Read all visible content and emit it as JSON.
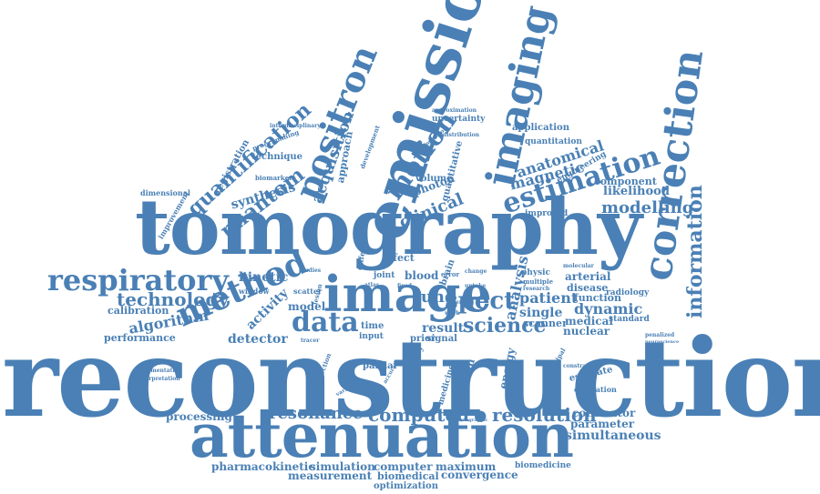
{
  "theme": {
    "word_color": "#4a80b5",
    "background": "#ffffff"
  },
  "words": [
    {
      "id": "reconstruction",
      "text": "reconstruction"
    },
    {
      "id": "tomography",
      "text": "tomography"
    },
    {
      "id": "attenuation",
      "text": "attenuation"
    },
    {
      "id": "emission",
      "text": "emission"
    },
    {
      "id": "image",
      "text": "image"
    },
    {
      "id": "imaging",
      "text": "imaging"
    },
    {
      "id": "correction",
      "text": "correction"
    },
    {
      "id": "positron",
      "text": "positron"
    },
    {
      "id": "method",
      "text": "method"
    },
    {
      "id": "respiratory",
      "text": "respiratory"
    },
    {
      "id": "estimation",
      "text": "estimation"
    },
    {
      "id": "motion",
      "text": "motion"
    },
    {
      "id": "data",
      "text": "data"
    },
    {
      "id": "spect",
      "text": "spect"
    },
    {
      "id": "science",
      "text": "science"
    },
    {
      "id": "quantification",
      "text": "quantification"
    },
    {
      "id": "phantom",
      "text": "phantom"
    },
    {
      "id": "information",
      "text": "information"
    },
    {
      "id": "technology",
      "text": "technology"
    },
    {
      "id": "resolution",
      "text": "resolution"
    },
    {
      "id": "computed",
      "text": "computed"
    },
    {
      "id": "resonance",
      "text": "resonance"
    },
    {
      "id": "simultaneous",
      "text": "simultaneous"
    },
    {
      "id": "modelling",
      "text": "modelling"
    },
    {
      "id": "anatomical",
      "text": "anatomical"
    },
    {
      "id": "magnetic",
      "text": "magnetic"
    },
    {
      "id": "clinical",
      "text": "clinical"
    },
    {
      "id": "acquisition",
      "text": "acquisition"
    },
    {
      "id": "patient",
      "text": "patient"
    },
    {
      "id": "dynamic",
      "text": "dynamic"
    },
    {
      "id": "analysis",
      "text": "analysis"
    },
    {
      "id": "algorithm",
      "text": "algorithm"
    },
    {
      "id": "detector",
      "text": "detector"
    },
    {
      "id": "activity",
      "text": "activity"
    },
    {
      "id": "kinetic",
      "text": "kinetic"
    },
    {
      "id": "model",
      "text": "model"
    },
    {
      "id": "likelihood",
      "text": "likelihood"
    },
    {
      "id": "component",
      "text": "component"
    },
    {
      "id": "synthesis",
      "text": "synthesis"
    },
    {
      "id": "lung",
      "text": "lung"
    },
    {
      "id": "single",
      "text": "single"
    },
    {
      "id": "result",
      "text": "result"
    },
    {
      "id": "nuclear",
      "text": "nuclear"
    },
    {
      "id": "medical",
      "text": "medical"
    },
    {
      "id": "function",
      "text": "function"
    },
    {
      "id": "disease",
      "text": "disease"
    },
    {
      "id": "arterial",
      "text": "arterial"
    },
    {
      "id": "collimator",
      "text": "collimator"
    },
    {
      "id": "parameter",
      "text": "parameter"
    },
    {
      "id": "measurement",
      "text": "measurement"
    },
    {
      "id": "simulation",
      "text": "simulation"
    },
    {
      "id": "pharmacokinetic",
      "text": "pharmacokinetic"
    },
    {
      "id": "computer",
      "text": "computer"
    },
    {
      "id": "maximum",
      "text": "maximum"
    },
    {
      "id": "convergence",
      "text": "convergence"
    },
    {
      "id": "biomedical",
      "text": "biomedical"
    },
    {
      "id": "optimization",
      "text": "optimization"
    },
    {
      "id": "biomedicine",
      "text": "biomedicine"
    },
    {
      "id": "processing",
      "text": "processing"
    },
    {
      "id": "calibration",
      "text": "calibration"
    },
    {
      "id": "performance",
      "text": "performance"
    },
    {
      "id": "photon",
      "text": "photon"
    },
    {
      "id": "volume",
      "text": "volume"
    },
    {
      "id": "technique",
      "text": "technique"
    },
    {
      "id": "registration",
      "text": "registration"
    },
    {
      "id": "approach",
      "text": "approach"
    },
    {
      "id": "application",
      "text": "application"
    },
    {
      "id": "uncertainty",
      "text": "uncertainty"
    },
    {
      "id": "energy",
      "text": "energy"
    },
    {
      "id": "system",
      "text": "system"
    },
    {
      "id": "density",
      "text": "density"
    },
    {
      "id": "partial",
      "text": "partial"
    },
    {
      "id": "scanner",
      "text": "scanner"
    },
    {
      "id": "estimate",
      "text": "estimate"
    },
    {
      "id": "evaluation",
      "text": "evaluation"
    },
    {
      "id": "standard",
      "text": "standard"
    },
    {
      "id": "radiology",
      "text": "radiology"
    },
    {
      "id": "improved",
      "text": "improved"
    },
    {
      "id": "quantitation",
      "text": "quantitation"
    },
    {
      "id": "engineering",
      "text": "engineering"
    },
    {
      "id": "quantitative",
      "text": "quantitative"
    },
    {
      "id": "brain",
      "text": "brain"
    },
    {
      "id": "blood",
      "text": "blood"
    },
    {
      "id": "effect",
      "text": "effect"
    },
    {
      "id": "joint",
      "text": "joint"
    },
    {
      "id": "time",
      "text": "time"
    },
    {
      "id": "input",
      "text": "input"
    },
    {
      "id": "prior",
      "text": "prior"
    },
    {
      "id": "signal",
      "text": "signal"
    },
    {
      "id": "physic",
      "text": "physic"
    },
    {
      "id": "medicine",
      "text": "medicine"
    },
    {
      "id": "dimensional",
      "text": "dimensional"
    },
    {
      "id": "improvement",
      "text": "improvement"
    },
    {
      "id": "biomarkers",
      "text": "biomarkers"
    },
    {
      "id": "programming",
      "text": "programming"
    },
    {
      "id": "interdisciplinary",
      "text": "interdisciplinary"
    },
    {
      "id": "development",
      "text": "development"
    },
    {
      "id": "optimisation",
      "text": "optimisation"
    },
    {
      "id": "distribution",
      "text": "distribution"
    },
    {
      "id": "approximation",
      "text": "approximation"
    },
    {
      "id": "different",
      "text": "different"
    },
    {
      "id": "scatter",
      "text": "scatter"
    },
    {
      "id": "window",
      "text": "window"
    },
    {
      "id": "studies",
      "text": "studies"
    },
    {
      "id": "lesion",
      "text": "lesion"
    },
    {
      "id": "projection",
      "text": "projection"
    },
    {
      "id": "segmentation",
      "text": "segmentation"
    },
    {
      "id": "interpretation",
      "text": "interpretation"
    },
    {
      "id": "penalized",
      "text": "penalized"
    },
    {
      "id": "neuroscience",
      "text": "neuroscience"
    },
    {
      "id": "principal",
      "text": "principal"
    },
    {
      "id": "multiple",
      "text": "multiple"
    },
    {
      "id": "error",
      "text": "error"
    },
    {
      "id": "change",
      "text": "change"
    },
    {
      "id": "molecular",
      "text": "molecular"
    },
    {
      "id": "research",
      "text": "research"
    },
    {
      "id": "constraint",
      "text": "constraint"
    },
    {
      "id": "insert",
      "text": "insert"
    },
    {
      "id": "work",
      "text": "work"
    },
    {
      "id": "uptake",
      "text": "uptake"
    },
    {
      "id": "tracer",
      "text": "tracer"
    },
    {
      "id": "atlas",
      "text": "atlas"
    },
    {
      "id": "fixed",
      "text": "fixed"
    },
    {
      "id": "variation",
      "text": "variation"
    },
    {
      "id": "tomographic",
      "text": "tomographic"
    },
    {
      "id": "accurate",
      "text": "accurate"
    }
  ]
}
